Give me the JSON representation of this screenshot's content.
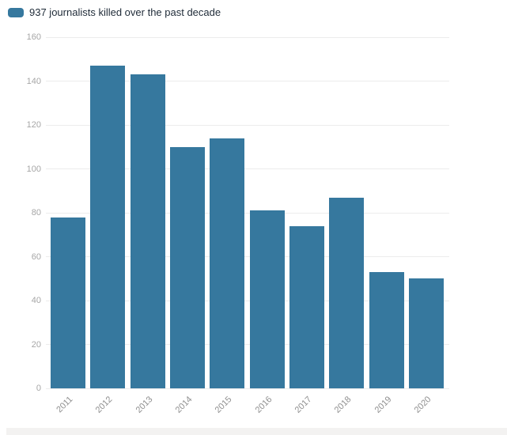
{
  "legend": {
    "label": "937 journalists killed over the past decade",
    "swatch_color": "#36789e"
  },
  "chart_data": {
    "type": "bar",
    "title": "937 journalists killed over the past decade",
    "categories": [
      "2011",
      "2012",
      "2013",
      "2014",
      "2015",
      "2016",
      "2017",
      "2018",
      "2019",
      "2020"
    ],
    "values": [
      78,
      147,
      143,
      110,
      114,
      81,
      74,
      87,
      53,
      50
    ],
    "total": 937,
    "xlabel": "",
    "ylabel": "",
    "ylim": [
      0,
      160
    ],
    "yticks": [
      0,
      20,
      40,
      60,
      80,
      100,
      120,
      140,
      160
    ],
    "grid": "horizontal",
    "gridline_color": "#ececec",
    "bar_color": "#36789e",
    "axis_label_color": "#a6a6a6",
    "legend_position": "top-left"
  }
}
